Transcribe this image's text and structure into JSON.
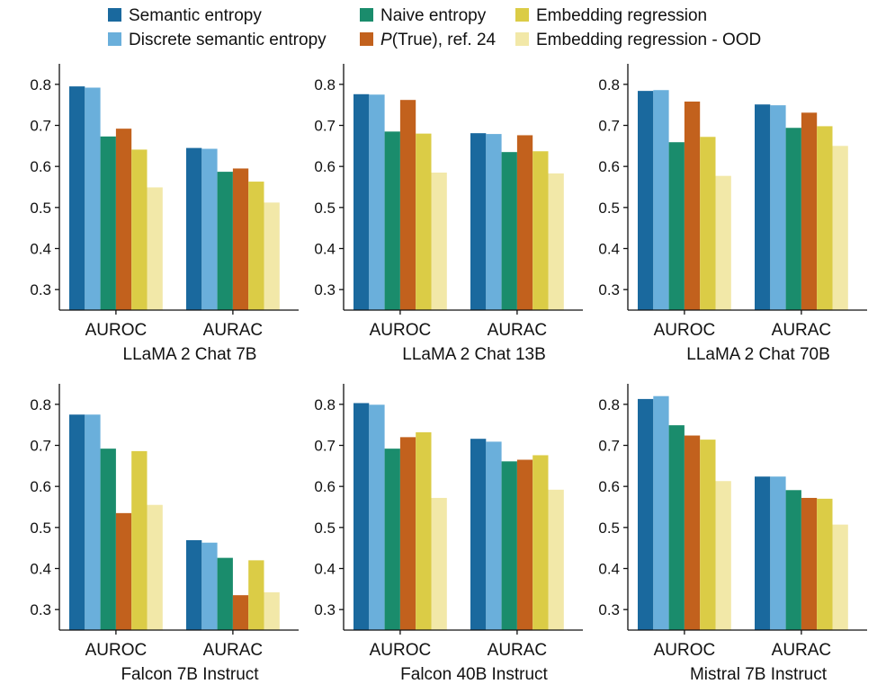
{
  "legend": [
    {
      "label": "Semantic entropy"
    },
    {
      "label": "Discrete semantic entropy"
    },
    {
      "label": "Naive entropy"
    },
    {
      "label": "P(True), ref. 24"
    },
    {
      "label": "Embedding regression"
    },
    {
      "label": "Embedding regression - OOD"
    }
  ],
  "colors": [
    "#1a699e",
    "#6aafdb",
    "#1a8c6c",
    "#c2611d",
    "#dbcc46",
    "#f2e8a8"
  ],
  "chart_data": [
    {
      "type": "bar",
      "title": "LLaMA 2 Chat 7B",
      "categories": [
        "AUROC",
        "AURAC"
      ],
      "ylim": [
        0.25,
        0.85
      ],
      "yticks": [
        0.3,
        0.4,
        0.5,
        0.6,
        0.7,
        0.8
      ],
      "series": [
        {
          "name": "Semantic entropy",
          "values": [
            0.795,
            0.645
          ]
        },
        {
          "name": "Discrete semantic entropy",
          "values": [
            0.792,
            0.643
          ]
        },
        {
          "name": "Naive entropy",
          "values": [
            0.673,
            0.587
          ]
        },
        {
          "name": "P(True), ref. 24",
          "values": [
            0.692,
            0.595
          ]
        },
        {
          "name": "Embedding regression",
          "values": [
            0.641,
            0.563
          ]
        },
        {
          "name": "Embedding regression - OOD",
          "values": [
            0.549,
            0.512
          ]
        }
      ]
    },
    {
      "type": "bar",
      "title": "LLaMA 2 Chat 13B",
      "categories": [
        "AUROC",
        "AURAC"
      ],
      "ylim": [
        0.25,
        0.85
      ],
      "yticks": [
        0.3,
        0.4,
        0.5,
        0.6,
        0.7,
        0.8
      ],
      "series": [
        {
          "name": "Semantic entropy",
          "values": [
            0.776,
            0.681
          ]
        },
        {
          "name": "Discrete semantic entropy",
          "values": [
            0.775,
            0.679
          ]
        },
        {
          "name": "Naive entropy",
          "values": [
            0.685,
            0.635
          ]
        },
        {
          "name": "P(True), ref. 24",
          "values": [
            0.762,
            0.676
          ]
        },
        {
          "name": "Embedding regression",
          "values": [
            0.68,
            0.637
          ]
        },
        {
          "name": "Embedding regression - OOD",
          "values": [
            0.585,
            0.583
          ]
        }
      ]
    },
    {
      "type": "bar",
      "title": "LLaMA 2 Chat 70B",
      "categories": [
        "AUROC",
        "AURAC"
      ],
      "ylim": [
        0.25,
        0.85
      ],
      "yticks": [
        0.3,
        0.4,
        0.5,
        0.6,
        0.7,
        0.8
      ],
      "series": [
        {
          "name": "Semantic entropy",
          "values": [
            0.784,
            0.751
          ]
        },
        {
          "name": "Discrete semantic entropy",
          "values": [
            0.786,
            0.749
          ]
        },
        {
          "name": "Naive entropy",
          "values": [
            0.659,
            0.694
          ]
        },
        {
          "name": "P(True), ref. 24",
          "values": [
            0.758,
            0.731
          ]
        },
        {
          "name": "Embedding regression",
          "values": [
            0.672,
            0.698
          ]
        },
        {
          "name": "Embedding regression - OOD",
          "values": [
            0.577,
            0.65
          ]
        }
      ]
    },
    {
      "type": "bar",
      "title": "Falcon 7B Instruct",
      "categories": [
        "AUROC",
        "AURAC"
      ],
      "ylim": [
        0.25,
        0.85
      ],
      "yticks": [
        0.3,
        0.4,
        0.5,
        0.6,
        0.7,
        0.8
      ],
      "series": [
        {
          "name": "Semantic entropy",
          "values": [
            0.775,
            0.469
          ]
        },
        {
          "name": "Discrete semantic entropy",
          "values": [
            0.775,
            0.463
          ]
        },
        {
          "name": "Naive entropy",
          "values": [
            0.692,
            0.426
          ]
        },
        {
          "name": "P(True), ref. 24",
          "values": [
            0.535,
            0.335
          ]
        },
        {
          "name": "Embedding regression",
          "values": [
            0.686,
            0.42
          ]
        },
        {
          "name": "Embedding regression - OOD",
          "values": [
            0.555,
            0.342
          ]
        }
      ]
    },
    {
      "type": "bar",
      "title": "Falcon 40B Instruct",
      "categories": [
        "AUROC",
        "AURAC"
      ],
      "ylim": [
        0.25,
        0.85
      ],
      "yticks": [
        0.3,
        0.4,
        0.5,
        0.6,
        0.7,
        0.8
      ],
      "series": [
        {
          "name": "Semantic entropy",
          "values": [
            0.803,
            0.716
          ]
        },
        {
          "name": "Discrete semantic entropy",
          "values": [
            0.799,
            0.709
          ]
        },
        {
          "name": "Naive entropy",
          "values": [
            0.692,
            0.661
          ]
        },
        {
          "name": "P(True), ref. 24",
          "values": [
            0.72,
            0.665
          ]
        },
        {
          "name": "Embedding regression",
          "values": [
            0.732,
            0.676
          ]
        },
        {
          "name": "Embedding regression - OOD",
          "values": [
            0.572,
            0.592
          ]
        }
      ]
    },
    {
      "type": "bar",
      "title": "Mistral 7B Instruct",
      "categories": [
        "AUROC",
        "AURAC"
      ],
      "ylim": [
        0.25,
        0.85
      ],
      "yticks": [
        0.3,
        0.4,
        0.5,
        0.6,
        0.7,
        0.8
      ],
      "series": [
        {
          "name": "Semantic entropy",
          "values": [
            0.813,
            0.624
          ]
        },
        {
          "name": "Discrete semantic entropy",
          "values": [
            0.82,
            0.624
          ]
        },
        {
          "name": "Naive entropy",
          "values": [
            0.749,
            0.591
          ]
        },
        {
          "name": "P(True), ref. 24",
          "values": [
            0.724,
            0.572
          ]
        },
        {
          "name": "Embedding regression",
          "values": [
            0.714,
            0.57
          ]
        },
        {
          "name": "Embedding regression - OOD",
          "values": [
            0.613,
            0.507
          ]
        }
      ]
    }
  ]
}
